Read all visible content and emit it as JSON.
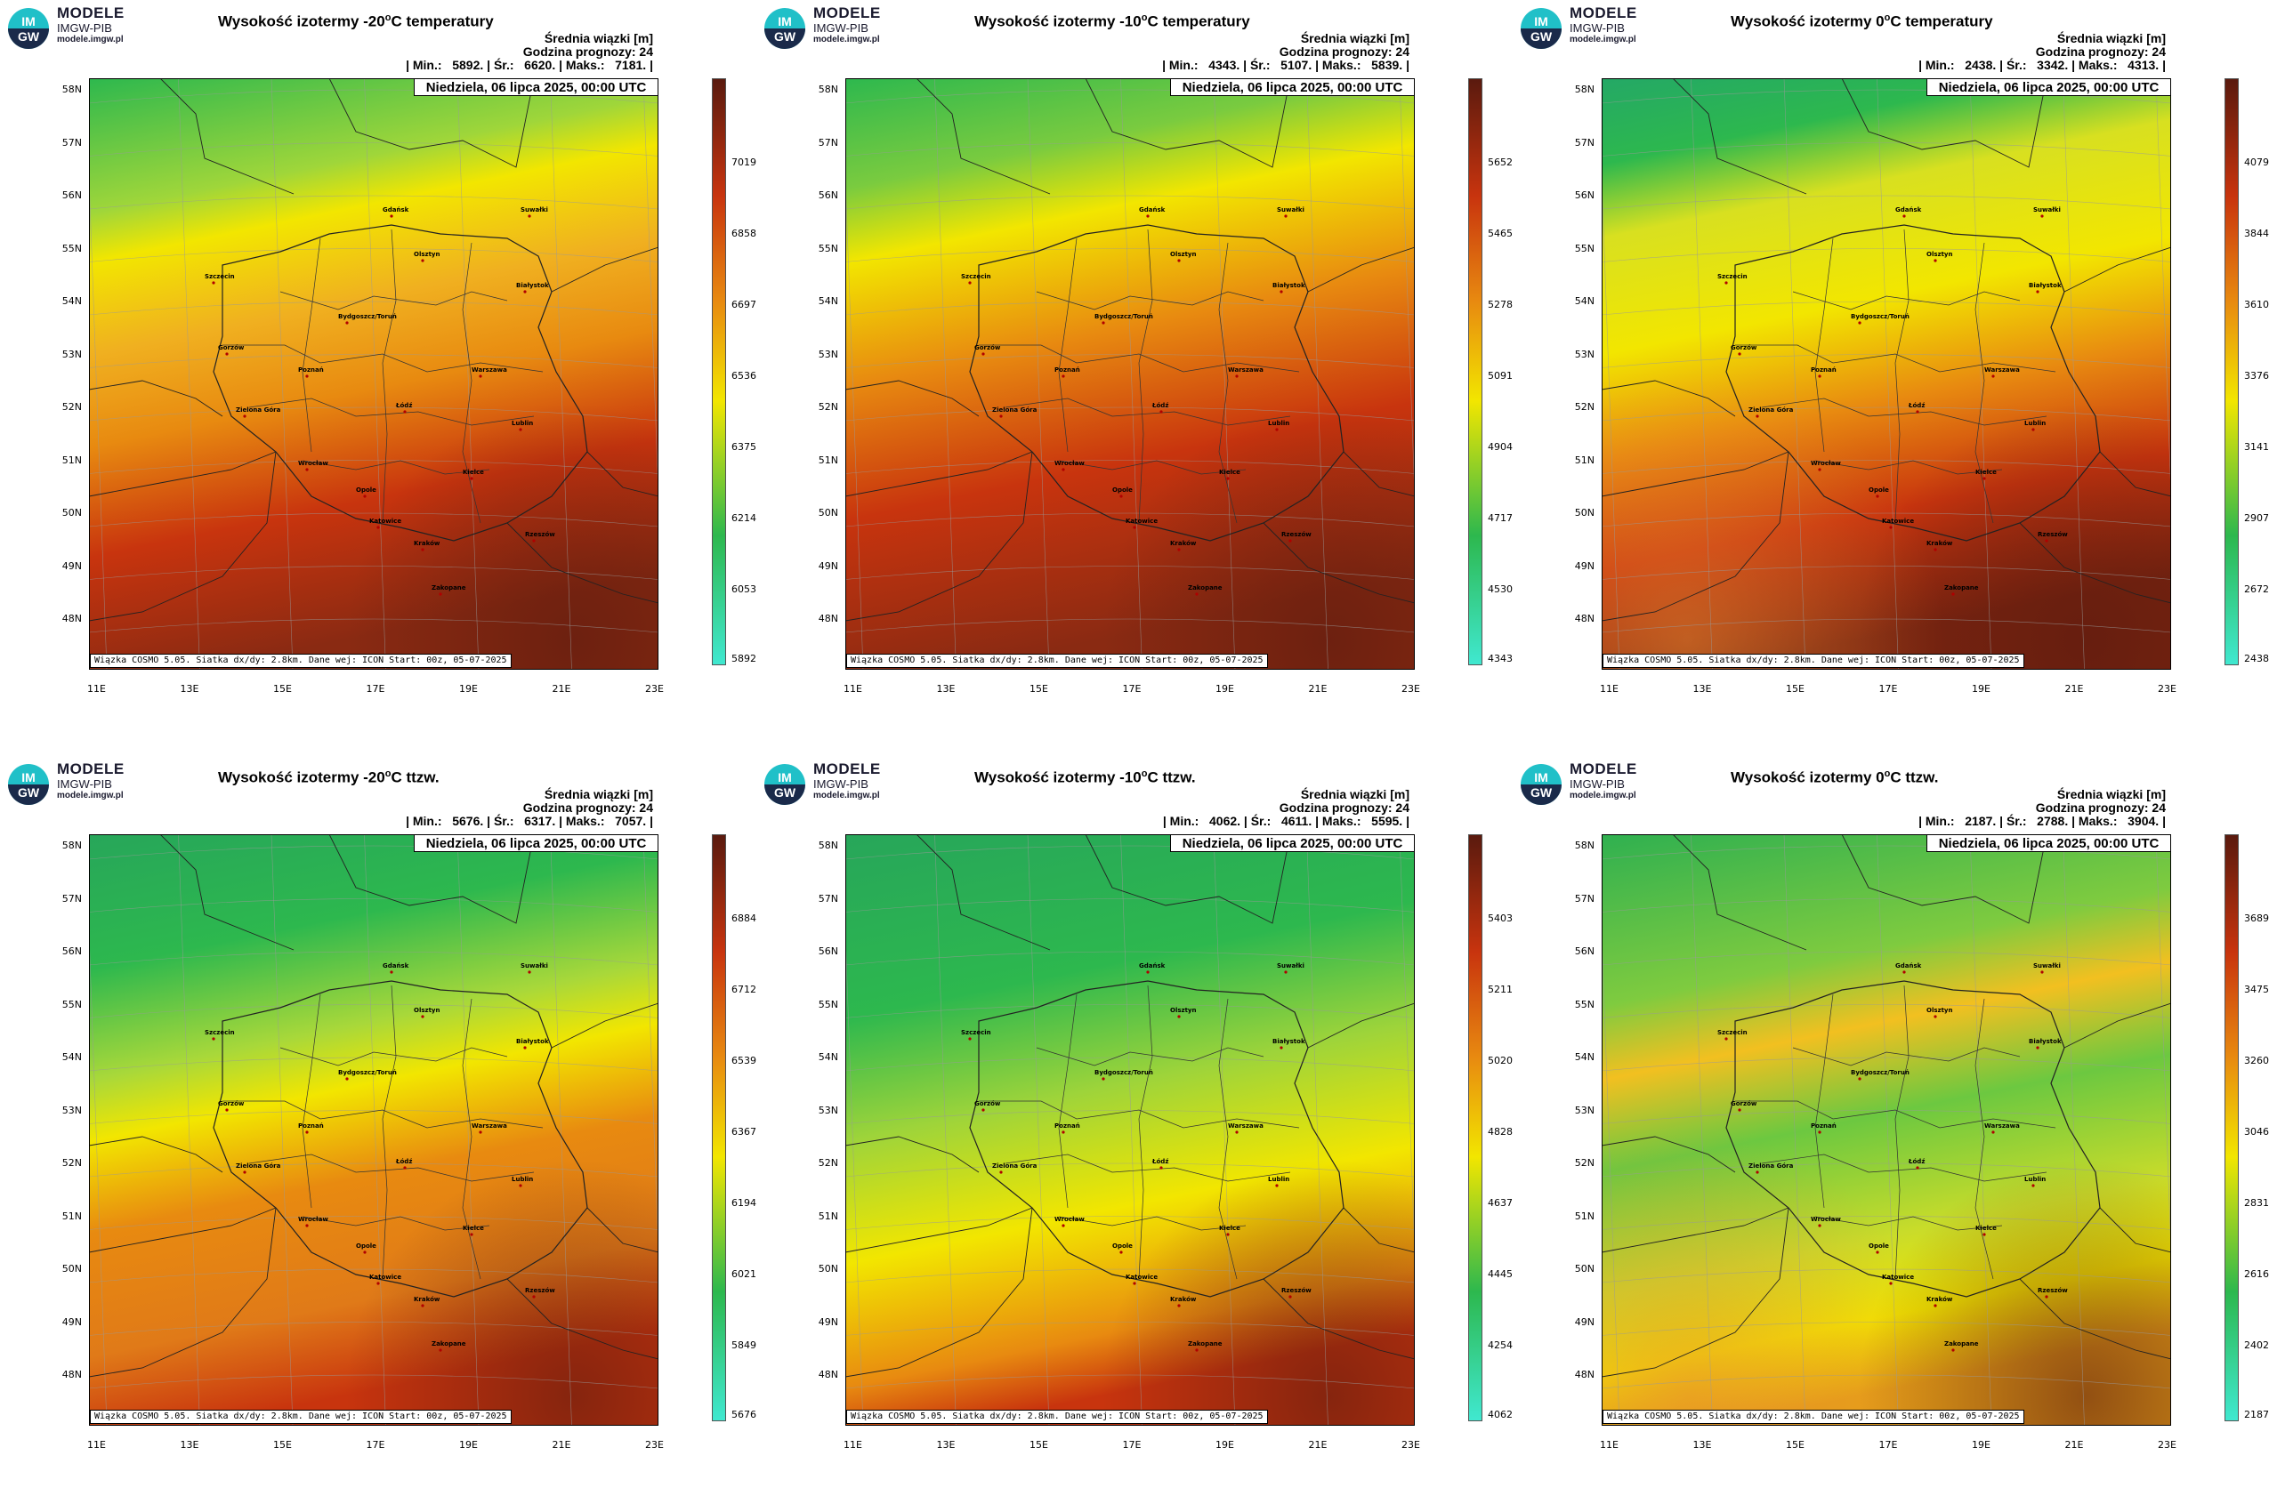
{
  "brand": {
    "line1": "MODELE",
    "line2": "IMGW-PIB",
    "line3": "modele.imgw.pl",
    "logo_text_top": "IM",
    "logo_text_bottom": "GW"
  },
  "common": {
    "mean_label": "Średnia wiązki [m]",
    "forecast_label": "Godzina prognozy: 24",
    "date_label": "Niedziela, 06 lipca 2025, 00:00 UTC",
    "footer": "Wiązka COSMO 5.05. Siatka dx/dy: 2.8km. Dane wej: ICON Start: 00z, 05-07-2025",
    "lat_labels": [
      "58N",
      "57N",
      "56N",
      "55N",
      "54N",
      "53N",
      "52N",
      "51N",
      "50N",
      "49N",
      "48N"
    ],
    "lon_labels": [
      "11E",
      "13E",
      "15E",
      "17E",
      "19E",
      "21E",
      "23E"
    ],
    "cities": [
      "Gdańsk",
      "Olsztyn",
      "Szczecin",
      "Białystok",
      "Bydgoszcz/Toruń",
      "Gorzów",
      "Poznań",
      "Warszawa",
      "Zielona Góra",
      "Łódź",
      "Lublin",
      "Wrocław",
      "Opole",
      "Kielce",
      "Katowice",
      "Kraków",
      "Rzeszów",
      "Zakopane",
      "Suwałki"
    ],
    "colors": {
      "cyan": "#40e8d0",
      "green": "#2db84e",
      "yellow": "#f2e600",
      "orange": "#e88a10",
      "red": "#c8340e",
      "darkred": "#5a1a0e"
    }
  },
  "panels": [
    {
      "title_pre": "Wysokość izotermy -20",
      "title_post": "C temperatury",
      "min": "5892.",
      "avg": "6620.",
      "max": "7181.",
      "ticks": [
        "7019",
        "6858",
        "6697",
        "6536",
        "6375",
        "6214",
        "6053",
        "5892"
      ],
      "scheme": "t20"
    },
    {
      "title_pre": "Wysokość izotermy -10",
      "title_post": "C temperatury",
      "min": "4343.",
      "avg": "5107.",
      "max": "5839.",
      "ticks": [
        "5652",
        "5465",
        "5278",
        "5091",
        "4904",
        "4717",
        "4530",
        "4343"
      ],
      "scheme": "t10"
    },
    {
      "title_pre": "Wysokość izotermy 0",
      "title_post": "C temperatury",
      "min": "2438.",
      "avg": "3342.",
      "max": "4313.",
      "ticks": [
        "4079",
        "3844",
        "3610",
        "3376",
        "3141",
        "2907",
        "2672",
        "2438"
      ],
      "scheme": "t0"
    },
    {
      "title_pre": "Wysokość izotermy -20",
      "title_post": "C ttzw.",
      "min": "5676.",
      "avg": "6317.",
      "max": "7057.",
      "ticks": [
        "6884",
        "6712",
        "6539",
        "6367",
        "6194",
        "6021",
        "5849",
        "5676"
      ],
      "scheme": "w20"
    },
    {
      "title_pre": "Wysokość izotermy -10",
      "title_post": "C ttzw.",
      "min": "4062.",
      "avg": "4611.",
      "max": "5595.",
      "ticks": [
        "5403",
        "5211",
        "5020",
        "4828",
        "4637",
        "4445",
        "4254",
        "4062"
      ],
      "scheme": "w10"
    },
    {
      "title_pre": "Wysokość izotermy 0",
      "title_post": "C ttzw.",
      "min": "2187.",
      "avg": "2788.",
      "max": "3904.",
      "ticks": [
        "3689",
        "3475",
        "3260",
        "3046",
        "2831",
        "2616",
        "2402",
        "2187"
      ],
      "scheme": "w0"
    }
  ]
}
